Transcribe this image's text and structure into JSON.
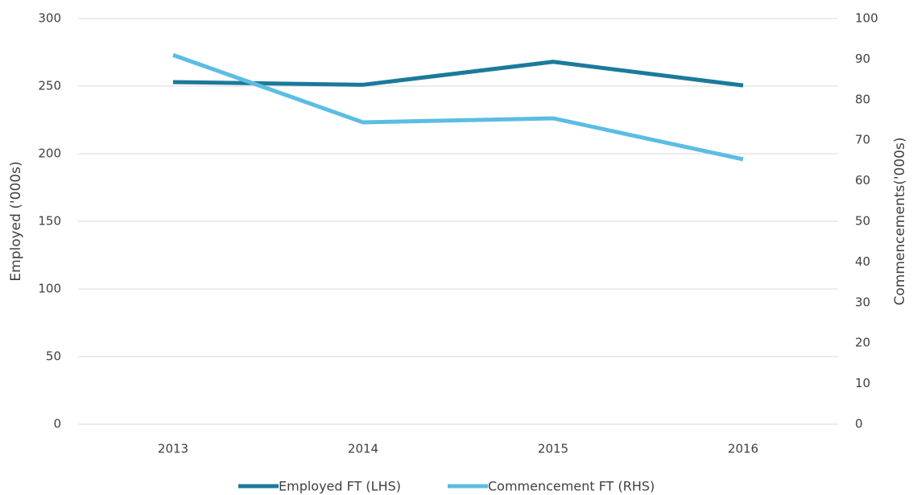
{
  "chart_data": {
    "type": "line",
    "categories": [
      "2013",
      "2014",
      "2015",
      "2016"
    ],
    "series": [
      {
        "name": "Employed FT (LHS)",
        "color": "#1b7a9b",
        "values": [
          253,
          251,
          268,
          250.5
        ]
      },
      {
        "name": "Commencement FT (RHS)",
        "color": "#5bbde3",
        "values": [
          91,
          74.4,
          75.4,
          65.3
        ],
        "axis": "y2"
      }
    ],
    "ylabel": "Employed ('000s)",
    "y2label": "Commencements('000s)",
    "ylim": [
      0,
      300
    ],
    "yticks": [
      0,
      50,
      100,
      150,
      200,
      250,
      300
    ],
    "y2lim": [
      0,
      100
    ],
    "y2ticks": [
      0,
      10,
      20,
      30,
      40,
      50,
      60,
      70,
      80,
      90,
      100
    ],
    "grid": true,
    "legend": "bottom"
  }
}
